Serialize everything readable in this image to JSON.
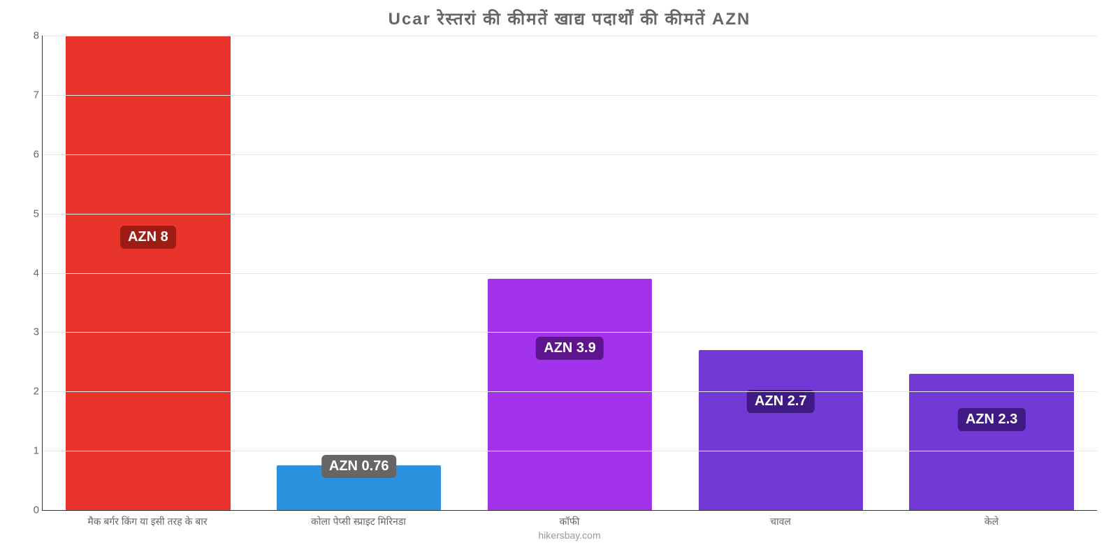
{
  "chart": {
    "type": "bar",
    "title": "Ucar रेस्तरां की कीमतें खाद्य पदार्थों की कीमतें AZN",
    "title_fontsize": 24,
    "title_color": "#666666",
    "attribution": "hikersbay.com",
    "background_color": "#ffffff",
    "grid_color": "#e6e6e6",
    "axis_color": "#333333",
    "ylim": [
      0,
      8
    ],
    "ytick_step": 1,
    "yticks": [
      "0",
      "1",
      "2",
      "3",
      "4",
      "5",
      "6",
      "7",
      "8"
    ],
    "bar_width": 0.78,
    "categories": [
      "मैक बर्गर किंग या इसी तरह के बार",
      "कोला पेप्सी स्प्राइट मिरिनडा",
      "कॉफी",
      "चावल",
      "केले"
    ],
    "values": [
      8,
      0.76,
      3.9,
      2.7,
      2.3
    ],
    "value_labels": [
      "AZN 8",
      "AZN 0.76",
      "AZN 3.9",
      "AZN 2.7",
      "AZN 2.3"
    ],
    "bar_colors": [
      "#e8342b",
      "#2b91de",
      "#a333ea",
      "#7239d6",
      "#7239d6"
    ],
    "label_bg_colors": [
      "#9f1c15",
      "#666666",
      "#5e138f",
      "#3f1a85",
      "#3f1a85"
    ],
    "label_positions": [
      "inside-high",
      "outside-top",
      "inside-mid",
      "inside-mid",
      "inside-mid"
    ],
    "x_label_fontsize": 14,
    "y_label_fontsize": 15,
    "value_label_fontsize": 20
  }
}
